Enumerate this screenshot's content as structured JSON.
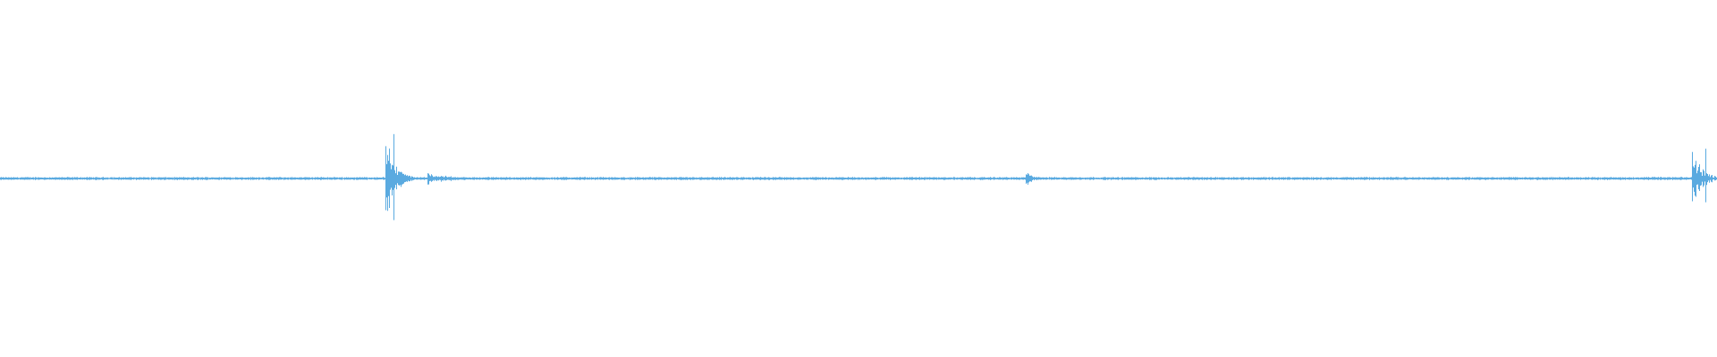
{
  "waveform": {
    "color": "#5aaae0"
  }
}
